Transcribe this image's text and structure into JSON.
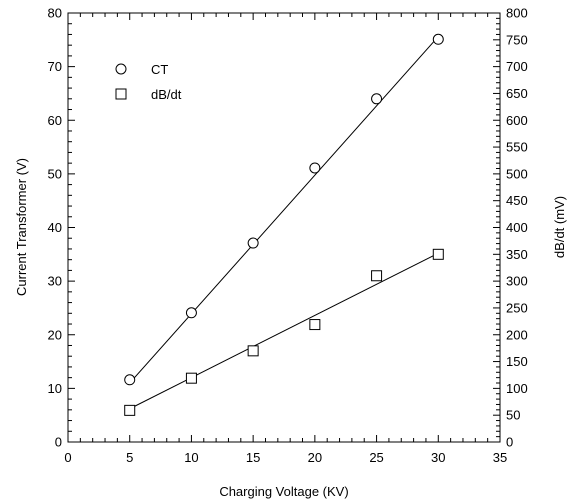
{
  "chart_data": {
    "type": "scatter",
    "xlabel": "Charging Voltage (KV)",
    "ylabel": "Current Transformer (V)",
    "y2label": "dB/dt (mV)",
    "xlim": [
      0,
      35
    ],
    "ylim": [
      0,
      80
    ],
    "y2lim": [
      0,
      800
    ],
    "xticks": [
      0,
      5,
      10,
      15,
      20,
      25,
      30,
      35
    ],
    "yticks": [
      0,
      10,
      20,
      30,
      40,
      50,
      60,
      70,
      80
    ],
    "y2ticks": [
      0,
      50,
      100,
      150,
      200,
      250,
      300,
      350,
      400,
      450,
      500,
      550,
      600,
      650,
      700,
      750,
      800
    ],
    "grid": false,
    "legend_position": "top-left",
    "series": [
      {
        "name": "CT",
        "marker": "circle",
        "axis": "left",
        "x": [
          5,
          10,
          15,
          20,
          25,
          30
        ],
        "y": [
          11.6,
          24.1,
          37.1,
          51.1,
          64.0,
          75.1
        ],
        "fit_line": {
          "x": [
            5,
            30
          ],
          "y": [
            11.0,
            75.6
          ]
        }
      },
      {
        "name": "dB/dt",
        "marker": "square",
        "axis": "right",
        "x": [
          5,
          10,
          15,
          20,
          25,
          30
        ],
        "y": [
          59,
          119,
          170,
          219,
          310,
          350
        ],
        "fit_line": {
          "x": [
            5,
            30
          ],
          "y": [
            62,
            352
          ]
        }
      }
    ]
  }
}
